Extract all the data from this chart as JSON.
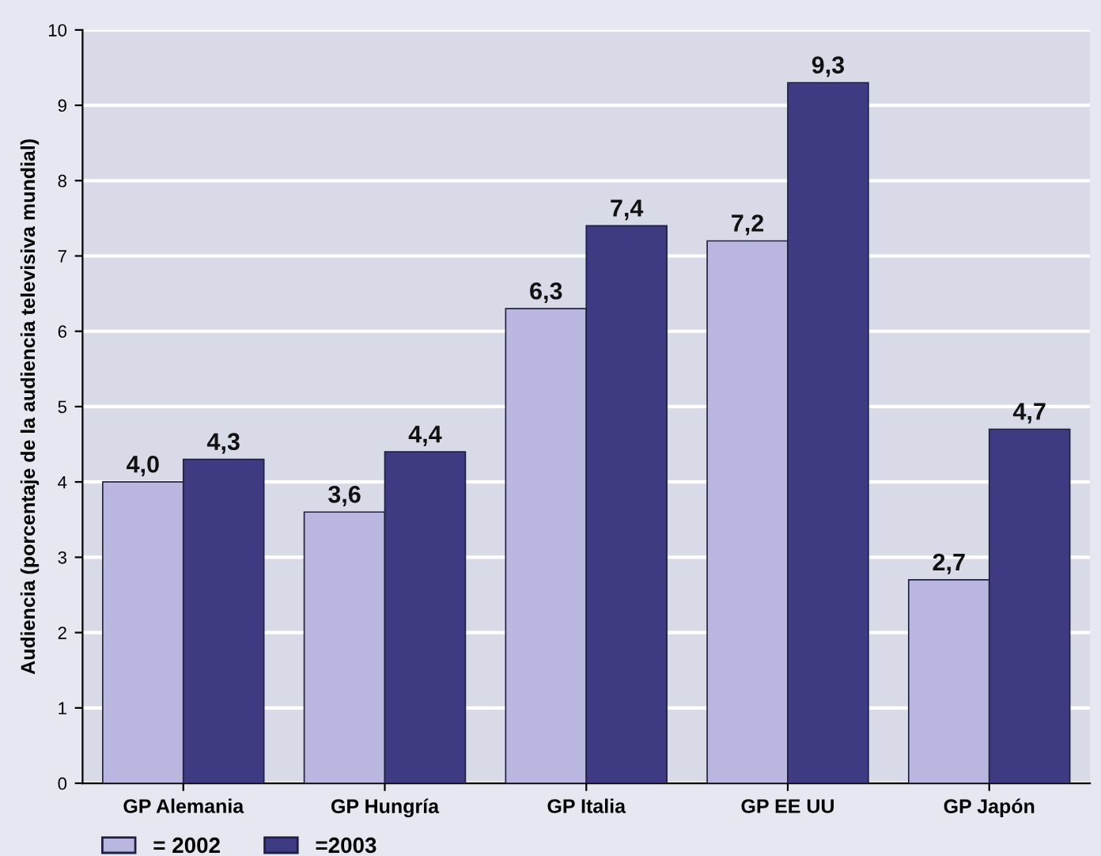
{
  "chart_data": {
    "type": "bar",
    "ylabel": "Audiencia (porcentaje de la audiencia televisiva mundial)",
    "categories": [
      "GP Alemania",
      "GP Hungría",
      "GP Italia",
      "GP EE UU",
      "GP Japón"
    ],
    "series": [
      {
        "name": "= 2002",
        "color": "#b9b7e0",
        "values": [
          4.0,
          3.6,
          6.3,
          7.2,
          2.7
        ],
        "value_labels": [
          "4,0",
          "3,6",
          "6,3",
          "7,2",
          "2,7"
        ]
      },
      {
        "name": "=2003",
        "color": "#3e3b82",
        "values": [
          4.3,
          4.4,
          7.4,
          9.3,
          4.7
        ],
        "value_labels": [
          "4,3",
          "4,4",
          "7,4",
          "9,3",
          "4,7"
        ]
      }
    ],
    "ylim": [
      0,
      10
    ],
    "yticks": [
      0,
      1,
      2,
      3,
      4,
      5,
      6,
      7,
      8,
      9,
      10
    ],
    "grid": "y",
    "legend": "bottom left"
  }
}
